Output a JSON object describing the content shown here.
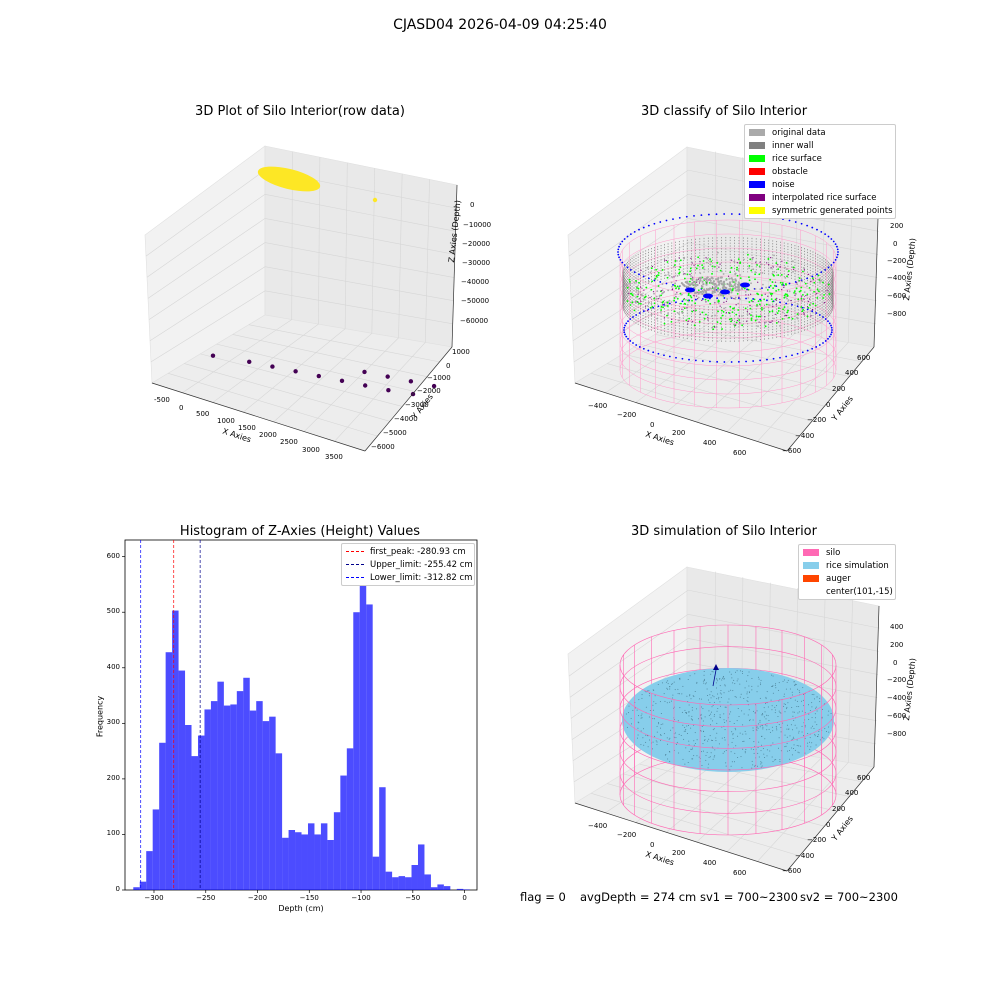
{
  "figure": {
    "suptitle": "CJASD04 2026-04-09 04:25:40",
    "footer": {
      "flag": "flag = 0",
      "avg_depth": "avgDepth = 274 cm",
      "sv1": "sv1 = 700~2300",
      "sv2": "sv2 = 700~2300"
    }
  },
  "chart_data": [
    {
      "type": "scatter",
      "title": "3D Plot of Silo Interior(row data)",
      "xlabel": "X Axies",
      "ylabel": "Y Axies",
      "zlabel": "Z Axies (Depth)",
      "x_ticks": [
        "-500",
        "0",
        "500",
        "1000",
        "1500",
        "2000",
        "2500",
        "3000",
        "3500"
      ],
      "y_ticks": [
        "1000",
        "0",
        "−1000",
        "−2000",
        "−3000",
        "−4000",
        "−5000",
        "−6000"
      ],
      "z_ticks": [
        "0",
        "−10000",
        "−20000",
        "−30000",
        "−40000",
        "−50000",
        "−60000"
      ],
      "colors": {
        "points": "#fde725",
        "outliers": "#440154"
      },
      "outlier_points": [
        {
          "x": -400,
          "y": -2500,
          "z": -65000
        },
        {
          "x": 200,
          "y": -2900,
          "z": -65000
        },
        {
          "x": 600,
          "y": -3100,
          "z": -65000
        },
        {
          "x": 1000,
          "y": -3300,
          "z": -65000
        },
        {
          "x": 1400,
          "y": -3500,
          "z": -65000
        },
        {
          "x": 1800,
          "y": -3700,
          "z": -65000
        },
        {
          "x": 2200,
          "y": -3900,
          "z": -65000
        },
        {
          "x": 2600,
          "y": -4100,
          "z": -65000
        },
        {
          "x": 3000,
          "y": -4400,
          "z": -65000
        },
        {
          "x": 1900,
          "y": -4900,
          "z": -65000
        },
        {
          "x": 2300,
          "y": -5100,
          "z": -65000
        },
        {
          "x": 2700,
          "y": -5300,
          "z": -65000
        },
        {
          "x": 3100,
          "y": -5500,
          "z": -65000
        }
      ]
    },
    {
      "type": "scatter",
      "title": "3D classify of Silo Interior",
      "xlabel": "X Axies",
      "ylabel": "Y Axies",
      "zlabel": "Z Axies (Depth)",
      "x_ticks": [
        "−400",
        "−200",
        "0",
        "200",
        "400",
        "600"
      ],
      "y_ticks": [
        "600",
        "400",
        "200",
        "0",
        "−200",
        "−400",
        "−600"
      ],
      "z_ticks": [
        "200",
        "0",
        "−200",
        "−400",
        "−600",
        "−800"
      ],
      "legend": [
        {
          "label": "original data",
          "color": "#aaaaaa"
        },
        {
          "label": "inner wall",
          "color": "#808080"
        },
        {
          "label": "rice surface",
          "color": "#00ff00"
        },
        {
          "label": "obstacle",
          "color": "#ff0000"
        },
        {
          "label": "noise",
          "color": "#0000ff"
        },
        {
          "label": "interpolated rice surface",
          "color": "#800080"
        },
        {
          "label": "symmetric generated points",
          "color": "#ffff00"
        }
      ],
      "cylinder_color": "#ff9ccc"
    },
    {
      "type": "bar",
      "title": "Histogram of Z-Axies (Height) Values",
      "xlabel": "Depth (cm)",
      "ylabel": "Frequency",
      "xlim": [
        -328,
        12
      ],
      "ylim": [
        0,
        630
      ],
      "x_ticks": [
        -300,
        -250,
        -200,
        -150,
        -100,
        -50,
        0
      ],
      "y_ticks": [
        0,
        100,
        200,
        300,
        400,
        500,
        600
      ],
      "bar_color": "#0000ff",
      "bar_alpha": 0.7,
      "bin_start": -320,
      "bin_width": 6.25,
      "values": [
        5,
        15,
        70,
        145,
        265,
        428,
        503,
        395,
        297,
        241,
        278,
        325,
        340,
        375,
        332,
        334,
        358,
        382,
        323,
        340,
        304,
        312,
        246,
        94,
        108,
        104,
        100,
        120,
        100,
        120,
        90,
        140,
        206,
        255,
        500,
        612,
        514,
        60,
        185,
        33,
        23,
        25,
        23,
        45,
        82,
        28,
        5,
        10,
        7,
        0,
        2,
        1
      ],
      "lines": [
        {
          "label": "first_peak: -280.93 cm",
          "value": -280.93,
          "color": "#ff0000"
        },
        {
          "label": "Upper_limit: -255.42 cm",
          "value": -255.42,
          "color": "#00008b"
        },
        {
          "label": "Lower_limit: -312.82 cm",
          "value": -312.82,
          "color": "#0000ff"
        }
      ]
    },
    {
      "type": "scatter",
      "title": "3D simulation of Silo Interior",
      "xlabel": "X Axies",
      "ylabel": "Y Axies",
      "zlabel": "Z Axies (Depth)",
      "x_ticks": [
        "−400",
        "−200",
        "0",
        "200",
        "400",
        "600"
      ],
      "y_ticks": [
        "600",
        "400",
        "200",
        "0",
        "−200",
        "−400",
        "−600"
      ],
      "z_ticks": [
        "400",
        "200",
        "0",
        "−200",
        "−400",
        "−600",
        "−800"
      ],
      "legend": [
        {
          "label": "silo",
          "color": "#ff69b4"
        },
        {
          "label": "rice simulation",
          "color": "#87ceeb"
        },
        {
          "label": "auger",
          "color": "#ff4500"
        },
        {
          "label": "center(101,-15)",
          "color": ""
        }
      ]
    }
  ]
}
